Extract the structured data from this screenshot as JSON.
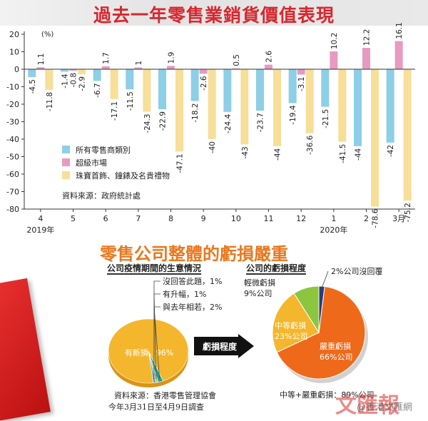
{
  "title": "過去一年零售業銷貨價值表現",
  "chart_data": [
    {
      "type": "bar",
      "unit_label": "(%)",
      "categories": [
        "4",
        "5",
        "6",
        "7",
        "8",
        "9",
        "10",
        "11",
        "12",
        "1",
        "2",
        "3月"
      ],
      "year_labels": [
        {
          "label": "2019年",
          "category_index": 0
        },
        {
          "label": "2020年",
          "category_index": 9
        }
      ],
      "ylim": [
        -80,
        20
      ],
      "yticks": [
        20,
        10,
        0,
        -10,
        -20,
        -30,
        -40,
        -50,
        -60,
        -70,
        -80
      ],
      "series": [
        {
          "name": "所有零售商類別",
          "color": "#8dcfe6",
          "values": [
            -4.5,
            -1.4,
            -6.7,
            -11.5,
            -22.9,
            -18.2,
            -24.4,
            -23.7,
            -19.4,
            -21.5,
            -44.0,
            -42.0
          ]
        },
        {
          "name": "超級市場",
          "color": "#e89ac0",
          "values": [
            1.1,
            -0.8,
            1.7,
            1.0,
            1.9,
            -2.6,
            0.5,
            2.6,
            -3.1,
            10.2,
            12.2,
            16.1
          ]
        },
        {
          "name": "珠寶首飾、鐘錶及名貴禮物",
          "color": "#f7df99",
          "values": [
            -11.8,
            -2.9,
            -17.1,
            -24.3,
            -47.1,
            -40.0,
            -43.0,
            -44.0,
            -36.6,
            -41.5,
            -78.6,
            -75.2
          ]
        }
      ],
      "source": "資料來源：政府統計處"
    },
    {
      "type": "pie",
      "title": "公司疫情期間的生意情況",
      "slices": [
        {
          "label": "有新損，96%",
          "value": 96,
          "color": "#f4b62c"
        },
        {
          "label": "與去年相若，2%",
          "value": 2,
          "color": "#2a9a8c"
        },
        {
          "label": "有升幅，1%",
          "value": 1,
          "color": "#9bd38a"
        },
        {
          "label": "沒回答此題，1%",
          "value": 1,
          "color": "#6aa0c8"
        }
      ]
    },
    {
      "type": "pie",
      "title": "公司的虧損程度",
      "slices": [
        {
          "label": "嚴重虧損\n66%公司",
          "value": 66,
          "color": "#ee6a1a"
        },
        {
          "label": "中等虧損\n23%公司",
          "value": 23,
          "color": "#f4b62c"
        },
        {
          "label": "輕微虧損\n9%公司",
          "value": 9,
          "color": "#8cc63f"
        },
        {
          "label": "2%公司沒回覆",
          "value": 2,
          "color": "#2b3a7a"
        }
      ],
      "footnote": "中等+嚴重虧損：89%公司"
    }
  ],
  "section_title": "零售公司整體的虧損嚴重",
  "arrow_label": "虧損程度",
  "survey_source_line1": "資料來源：香港零售管理協會",
  "survey_source_line2": "今年3月31日至4月9日調查",
  "watermark": "文匯報",
  "watermark2": "@香港文匯網"
}
